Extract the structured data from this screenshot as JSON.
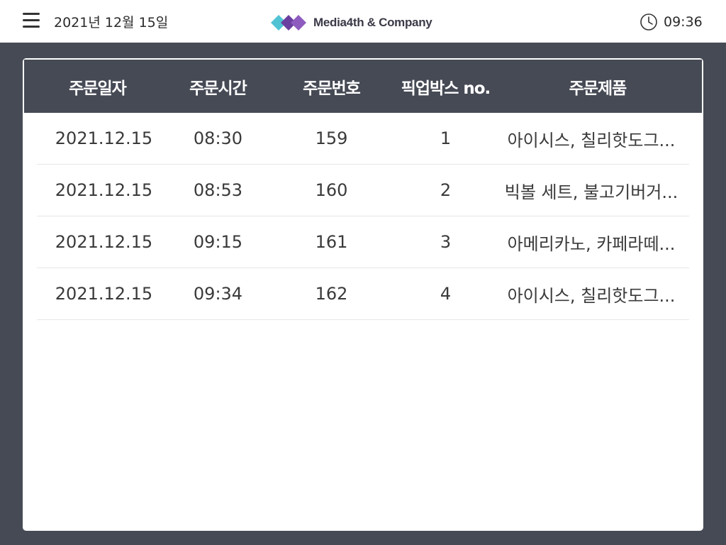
{
  "header": {
    "date": "2021년 12월 15일",
    "brand": "Media4th & Company",
    "time": "09:36",
    "icons": {
      "menu": "hamburger-icon",
      "logo": "media4th-logo",
      "clock": "clock-icon"
    },
    "colors": {
      "logo_cyan": "#4fc3d3",
      "logo_purple": "#6b3fa0",
      "logo_violet": "#8e5bbf"
    }
  },
  "table": {
    "headers": [
      "주문일자",
      "주문시간",
      "주문번호",
      "픽업박스 no.",
      "주문제품"
    ],
    "rows": [
      [
        "2021.12.15",
        "08:30",
        "159",
        "1",
        "아이시스, 칠리핫도그..."
      ],
      [
        "2021.12.15",
        "08:53",
        "160",
        "2",
        "빅볼 세트, 불고기버거..."
      ],
      [
        "2021.12.15",
        "09:15",
        "161",
        "3",
        "아메리카노, 카페라떼..."
      ],
      [
        "2021.12.15",
        "09:34",
        "162",
        "4",
        "아이시스, 칠리핫도그..."
      ]
    ]
  },
  "colors": {
    "background": "#464a55",
    "header_bg": "#464a55",
    "panel": "#ffffff"
  }
}
